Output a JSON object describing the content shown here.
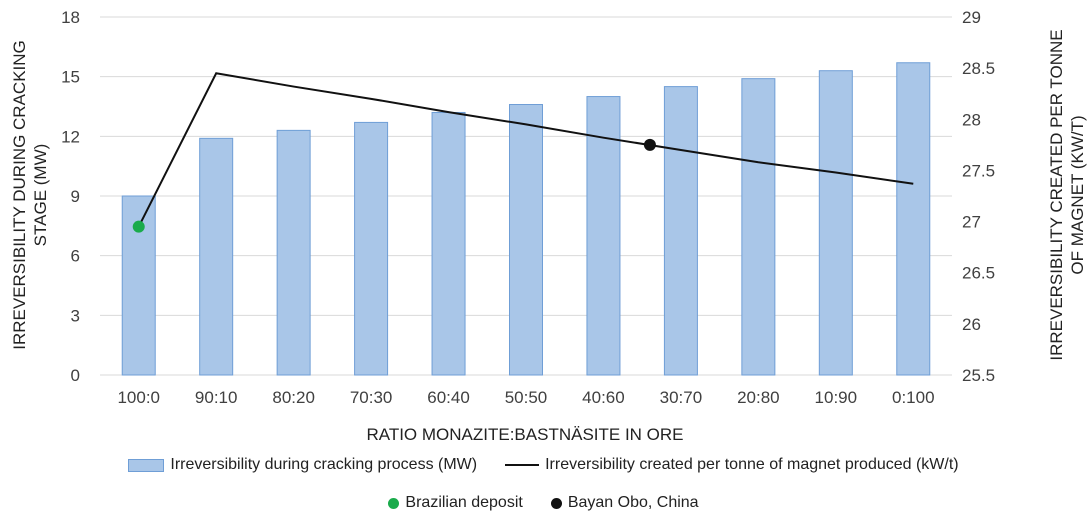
{
  "chart_data": {
    "type": "bar",
    "categories": [
      "100:0",
      "90:10",
      "80:20",
      "70:30",
      "60:40",
      "50:50",
      "40:60",
      "30:70",
      "20:80",
      "10:90",
      "0:100"
    ],
    "series": [
      {
        "name": "Irreversibility during cracking process (MW)",
        "type": "bar",
        "axis": "left",
        "color": "#a9c6e8",
        "values": [
          9.0,
          11.9,
          12.3,
          12.7,
          13.2,
          13.6,
          14.0,
          14.5,
          14.9,
          15.3,
          15.7
        ]
      },
      {
        "name": "Irreversibility created per tonne of magnet produced (kW/t)",
        "type": "line",
        "axis": "right",
        "color": "#111111",
        "values": [
          26.95,
          28.45,
          28.32,
          28.2,
          28.07,
          27.95,
          27.82,
          27.7,
          27.58,
          27.48,
          27.37
        ]
      }
    ],
    "markers": [
      {
        "name": "Brazilian deposit",
        "color": "#1aab4b",
        "x": 0,
        "y": 26.95,
        "axis": "right"
      },
      {
        "name": "Bayan Obo, China",
        "color": "#111111",
        "x": 6.6,
        "y": 27.75,
        "axis": "right"
      }
    ],
    "xlabel": "RATIO MONAZITE:BASTNÄSITE IN ORE",
    "ylabel_left": [
      "IRREVERSIBILITY DURING CRACKING",
      "STAGE (MW)"
    ],
    "ylabel_right": [
      "IRREVERSIBILITY CREATED PER TONNE",
      "OF MAGNET (KW/T)"
    ],
    "ylim_left": [
      0,
      18
    ],
    "yticks_left": [
      "0",
      "3",
      "6",
      "9",
      "12",
      "15",
      "18"
    ],
    "ylim_right": [
      25.5,
      29
    ],
    "yticks_right": [
      "25.5",
      "26",
      "26.5",
      "27",
      "27.5",
      "28",
      "28.5",
      "29"
    ],
    "grid": true,
    "gridline_color": "#d9d9d9",
    "legend_position": "bottom"
  },
  "legend": {
    "bar_label": "Irreversibility during cracking process (MW)",
    "line_label": "Irreversibility created per tonne of magnet produced (kW/t)",
    "brazil_label": "Brazilian deposit",
    "bayan_label": "Bayan Obo, China"
  }
}
